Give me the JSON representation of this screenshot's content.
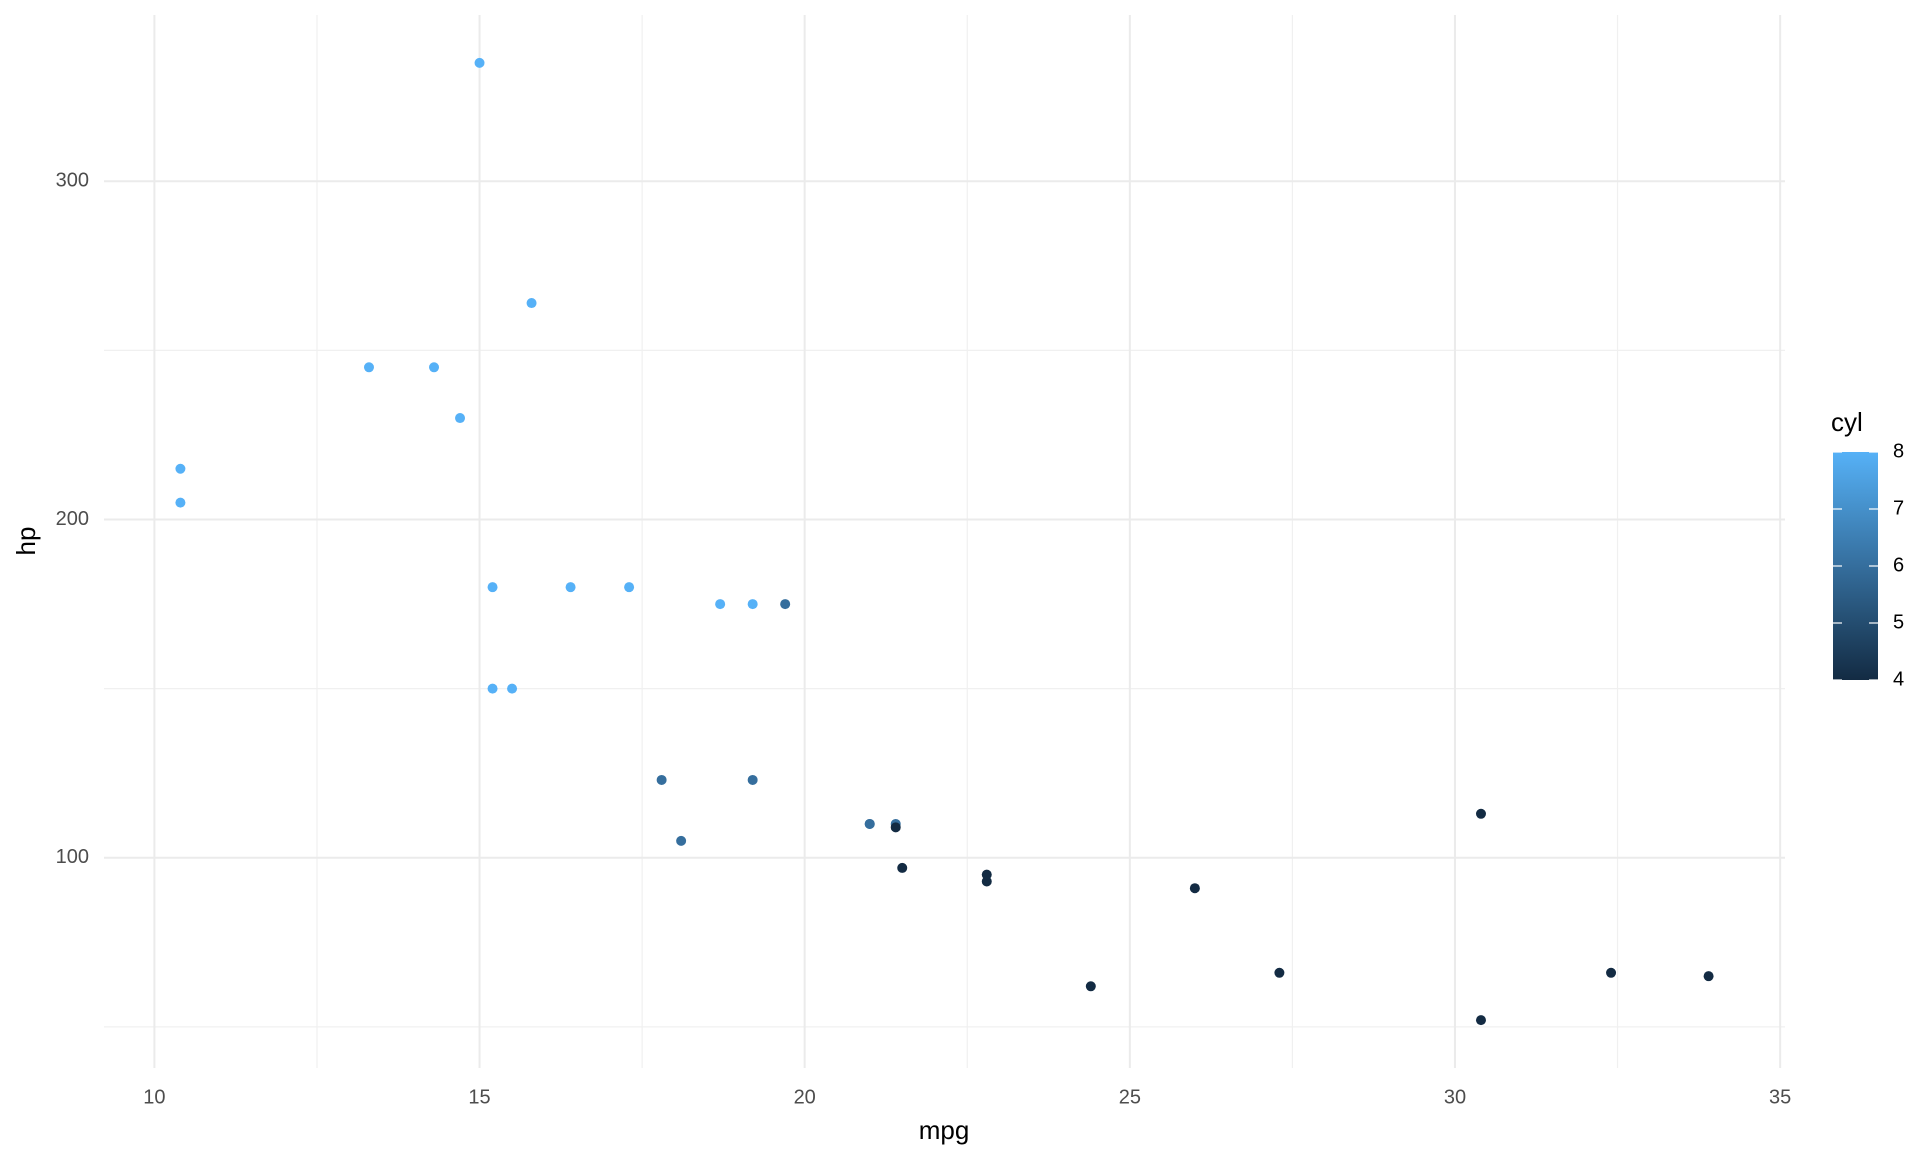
{
  "chart_data": {
    "type": "scatter",
    "x_label": "mpg",
    "y_label": "hp",
    "x": [
      21.0,
      21.0,
      22.8,
      21.4,
      18.7,
      18.1,
      14.3,
      24.4,
      22.8,
      19.2,
      17.8,
      16.4,
      17.3,
      15.2,
      10.4,
      10.4,
      14.7,
      32.4,
      30.4,
      33.9,
      21.5,
      15.5,
      15.2,
      13.3,
      19.2,
      27.3,
      26.0,
      30.4,
      15.8,
      19.7,
      15.0,
      21.4
    ],
    "y": [
      110,
      110,
      93,
      110,
      175,
      105,
      245,
      62,
      95,
      123,
      123,
      180,
      180,
      180,
      205,
      215,
      230,
      66,
      52,
      65,
      97,
      150,
      150,
      245,
      175,
      66,
      91,
      113,
      264,
      175,
      335,
      109
    ],
    "color_values": [
      6,
      6,
      4,
      6,
      8,
      6,
      8,
      4,
      4,
      6,
      6,
      8,
      8,
      8,
      8,
      8,
      8,
      4,
      4,
      4,
      4,
      8,
      8,
      8,
      8,
      4,
      4,
      4,
      8,
      6,
      8,
      4
    ],
    "color_label": "cyl",
    "color_low": "#132b43",
    "color_high": "#56b1f7",
    "colorlim": [
      4,
      8
    ],
    "colorticks": [
      4,
      5,
      6,
      7,
      8
    ],
    "xlim": [
      9.225,
      35.075
    ],
    "ylim": [
      37.85,
      349.15
    ],
    "xticks": [
      10,
      15,
      20,
      25,
      30,
      35
    ],
    "yticks": [
      100,
      200,
      300
    ],
    "grid": true,
    "minor_grid": true,
    "legend_position": "right"
  }
}
